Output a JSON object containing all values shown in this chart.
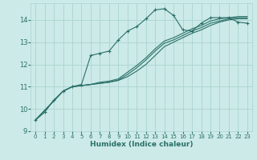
{
  "xlabel": "Humidex (Indice chaleur)",
  "background_color": "#cceae8",
  "grid_color": "#aad4d0",
  "line_color": "#2a7068",
  "xlim": [
    -0.5,
    23.5
  ],
  "ylim": [
    9.0,
    14.75
  ],
  "yticks": [
    9,
    10,
    11,
    12,
    13,
    14
  ],
  "xticks": [
    0,
    1,
    2,
    3,
    4,
    5,
    6,
    7,
    8,
    9,
    10,
    11,
    12,
    13,
    14,
    15,
    16,
    17,
    18,
    19,
    20,
    21,
    22,
    23
  ],
  "series1_x": [
    0,
    1,
    2,
    3,
    4,
    5,
    6,
    7,
    8,
    9,
    10,
    11,
    12,
    13,
    14,
    15,
    16,
    17,
    18,
    19,
    20,
    21,
    22,
    23
  ],
  "series1_y": [
    9.5,
    9.85,
    10.4,
    10.8,
    11.0,
    11.1,
    12.4,
    12.5,
    12.6,
    13.1,
    13.5,
    13.7,
    14.05,
    14.45,
    14.5,
    14.2,
    13.55,
    13.5,
    13.85,
    14.1,
    14.1,
    14.1,
    13.9,
    13.85
  ],
  "series2_x": [
    0,
    3,
    4,
    5,
    6,
    7,
    8,
    9,
    10,
    11,
    12,
    13,
    14,
    15,
    16,
    17,
    18,
    19,
    20,
    21,
    22,
    23
  ],
  "series2_y": [
    9.5,
    10.8,
    11.0,
    11.05,
    11.1,
    11.15,
    11.2,
    11.3,
    11.55,
    11.85,
    12.2,
    12.6,
    12.95,
    13.1,
    13.3,
    13.5,
    13.65,
    13.85,
    13.95,
    14.05,
    14.1,
    14.1
  ],
  "series3_x": [
    0,
    3,
    4,
    5,
    6,
    7,
    8,
    9,
    10,
    11,
    12,
    13,
    14,
    15,
    16,
    17,
    18,
    19,
    20,
    21,
    22,
    23
  ],
  "series3_y": [
    9.5,
    10.8,
    11.0,
    11.05,
    11.1,
    11.2,
    11.25,
    11.35,
    11.65,
    11.95,
    12.3,
    12.7,
    13.05,
    13.2,
    13.4,
    13.6,
    13.75,
    13.95,
    14.05,
    14.1,
    14.15,
    14.15
  ],
  "series4_x": [
    0,
    3,
    4,
    5,
    6,
    7,
    8,
    9,
    10,
    11,
    12,
    13,
    14,
    15,
    16,
    17,
    18,
    19,
    20,
    21,
    22,
    23
  ],
  "series4_y": [
    9.5,
    10.8,
    11.0,
    11.05,
    11.1,
    11.15,
    11.2,
    11.28,
    11.45,
    11.7,
    12.0,
    12.4,
    12.8,
    13.0,
    13.2,
    13.4,
    13.55,
    13.75,
    13.9,
    14.0,
    14.05,
    14.05
  ]
}
